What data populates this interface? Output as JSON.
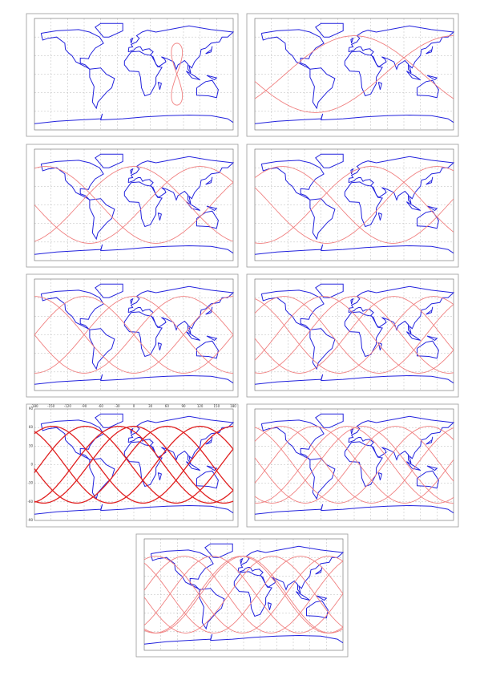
{
  "panel_7": {
    "xticks": [
      -180,
      -150,
      -120,
      -90,
      -60,
      -30,
      0,
      30,
      60,
      90,
      120,
      150,
      180
    ],
    "yticks": [
      90,
      60,
      30,
      0,
      -30,
      -60,
      -90
    ]
  }
}
